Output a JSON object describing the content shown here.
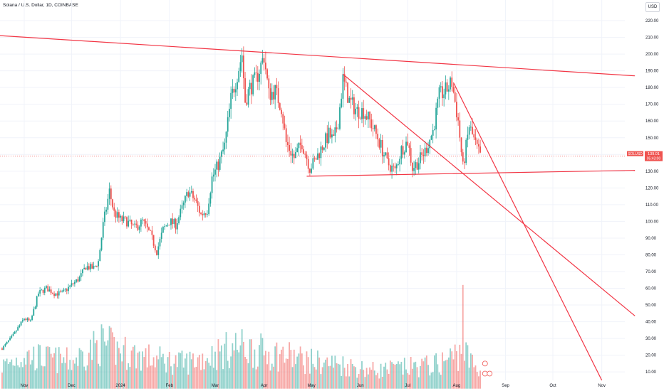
{
  "header": {
    "title": "Solana / U.S. Dollar, 1D, COINBASE",
    "currency_button": "USD"
  },
  "price_tag": {
    "symbol": "SOLUSD",
    "price": "139.01",
    "countdown": "05:43:00"
  },
  "colors": {
    "up": "#26a69a",
    "down": "#ef5350",
    "trendline": "#f23645",
    "axis_text": "#131722",
    "grid": "#f0f3fa",
    "border": "#e0e3eb"
  },
  "chart_data": {
    "type": "candlestick",
    "title": "Solana / U.S. Dollar, 1D, COINBASE",
    "ylim": [
      0,
      236
    ],
    "y_ticks": [
      10,
      20,
      30,
      40,
      50,
      60,
      70,
      80,
      90,
      100,
      110,
      120,
      130,
      140,
      150,
      160,
      170,
      180,
      190,
      200,
      210,
      220
    ],
    "y_tick_labels": [
      "10.00",
      "20.00",
      "30.00",
      "40.00",
      "50.00",
      "60.00",
      "70.00",
      "80.00",
      "90.00",
      "100.00",
      "110.00",
      "120.00",
      "130.00",
      "140.00",
      "150.00",
      "160.00",
      "170.00",
      "180.00",
      "190.00",
      "200.00",
      "210.00",
      "220.00"
    ],
    "x_labels": [
      {
        "label": "Nov",
        "date": "2023-11-01"
      },
      {
        "label": "Dec",
        "date": "2023-12-01"
      },
      {
        "label": "2024",
        "date": "2024-01-01"
      },
      {
        "label": "Feb",
        "date": "2024-02-01"
      },
      {
        "label": "Mar",
        "date": "2024-03-01"
      },
      {
        "label": "Apr",
        "date": "2024-04-01"
      },
      {
        "label": "May",
        "date": "2024-05-01"
      },
      {
        "label": "Jun",
        "date": "2024-06-01"
      },
      {
        "label": "Jul",
        "date": "2024-07-01"
      },
      {
        "label": "Aug",
        "date": "2024-08-01"
      },
      {
        "label": "Sep",
        "date": "2024-09-01"
      },
      {
        "label": "Oct",
        "date": "2024-10-01"
      },
      {
        "label": "Nov",
        "date": "2024-11-01"
      }
    ],
    "price_path": [
      [
        "2023-10-18",
        24
      ],
      [
        "2023-10-25",
        32
      ],
      [
        "2023-11-01",
        42
      ],
      [
        "2023-11-05",
        40
      ],
      [
        "2023-11-10",
        57
      ],
      [
        "2023-11-15",
        60
      ],
      [
        "2023-11-20",
        57
      ],
      [
        "2023-11-25",
        57
      ],
      [
        "2023-12-01",
        62
      ],
      [
        "2023-12-06",
        66
      ],
      [
        "2023-12-10",
        73
      ],
      [
        "2023-12-15",
        72
      ],
      [
        "2023-12-18",
        76
      ],
      [
        "2023-12-21",
        98
      ],
      [
        "2023-12-25",
        118
      ],
      [
        "2023-12-28",
        105
      ],
      [
        "2024-01-01",
        101
      ],
      [
        "2024-01-05",
        100
      ],
      [
        "2024-01-10",
        96
      ],
      [
        "2024-01-15",
        100
      ],
      [
        "2024-01-20",
        92
      ],
      [
        "2024-01-24",
        82
      ],
      [
        "2024-01-28",
        95
      ],
      [
        "2024-02-01",
        100
      ],
      [
        "2024-02-05",
        98
      ],
      [
        "2024-02-10",
        110
      ],
      [
        "2024-02-13",
        118
      ],
      [
        "2024-02-17",
        113
      ],
      [
        "2024-02-21",
        104
      ],
      [
        "2024-02-25",
        107
      ],
      [
        "2024-02-28",
        126
      ],
      [
        "2024-03-03",
        134
      ],
      [
        "2024-03-07",
        145
      ],
      [
        "2024-03-11",
        173
      ],
      [
        "2024-03-14",
        184
      ],
      [
        "2024-03-18",
        200
      ],
      [
        "2024-03-20",
        172
      ],
      [
        "2024-03-23",
        180
      ],
      [
        "2024-03-27",
        185
      ],
      [
        "2024-04-01",
        199
      ],
      [
        "2024-04-04",
        176
      ],
      [
        "2024-04-08",
        178
      ],
      [
        "2024-04-12",
        168
      ],
      [
        "2024-04-15",
        147
      ],
      [
        "2024-04-20",
        138
      ],
      [
        "2024-04-25",
        147
      ],
      [
        "2024-04-30",
        132
      ],
      [
        "2024-05-03",
        136
      ],
      [
        "2024-05-08",
        145
      ],
      [
        "2024-05-12",
        152
      ],
      [
        "2024-05-15",
        148
      ],
      [
        "2024-05-18",
        160
      ],
      [
        "2024-05-21",
        185
      ],
      [
        "2024-05-25",
        172
      ],
      [
        "2024-05-30",
        166
      ],
      [
        "2024-06-03",
        166
      ],
      [
        "2024-06-07",
        160
      ],
      [
        "2024-06-12",
        150
      ],
      [
        "2024-06-18",
        135
      ],
      [
        "2024-06-23",
        130
      ],
      [
        "2024-06-27",
        143
      ],
      [
        "2024-07-01",
        148
      ],
      [
        "2024-07-04",
        132
      ],
      [
        "2024-07-08",
        136
      ],
      [
        "2024-07-12",
        142
      ],
      [
        "2024-07-17",
        154
      ],
      [
        "2024-07-21",
        175
      ],
      [
        "2024-07-25",
        178
      ],
      [
        "2024-07-29",
        183
      ],
      [
        "2024-08-02",
        160
      ],
      [
        "2024-08-05",
        132
      ],
      [
        "2024-08-09",
        157
      ],
      [
        "2024-08-13",
        146
      ],
      [
        "2024-08-16",
        139
      ]
    ],
    "volume_path": [
      [
        "2023-10-18",
        15
      ],
      [
        "2023-11-01",
        22
      ],
      [
        "2023-11-15",
        20
      ],
      [
        "2023-12-01",
        18
      ],
      [
        "2023-12-20",
        30
      ],
      [
        "2024-01-01",
        25
      ],
      [
        "2024-01-20",
        20
      ],
      [
        "2024-02-10",
        17
      ],
      [
        "2024-02-28",
        22
      ],
      [
        "2024-03-15",
        28
      ],
      [
        "2024-04-01",
        24
      ],
      [
        "2024-04-15",
        22
      ],
      [
        "2024-05-01",
        18
      ],
      [
        "2024-05-20",
        16
      ],
      [
        "2024-06-10",
        12
      ],
      [
        "2024-07-01",
        14
      ],
      [
        "2024-07-20",
        16
      ],
      [
        "2024-08-05",
        25
      ],
      [
        "2024-08-16",
        10
      ]
    ],
    "volume_spike": {
      "date": "2024-08-05",
      "value": 62
    },
    "trendlines": [
      {
        "from": [
          "2023-10-01",
          212
        ],
        "to": [
          "2024-11-22",
          187
        ]
      },
      {
        "from": [
          "2024-04-28",
          127
        ],
        "to": [
          "2024-11-22",
          130.5
        ]
      },
      {
        "from": [
          "2024-05-21",
          188
        ],
        "to": [
          "2024-11-22",
          43.5
        ]
      },
      {
        "from": [
          "2024-07-30",
          183
        ],
        "to": [
          "2024-11-01",
          5
        ]
      }
    ],
    "current_price": 139.01
  }
}
